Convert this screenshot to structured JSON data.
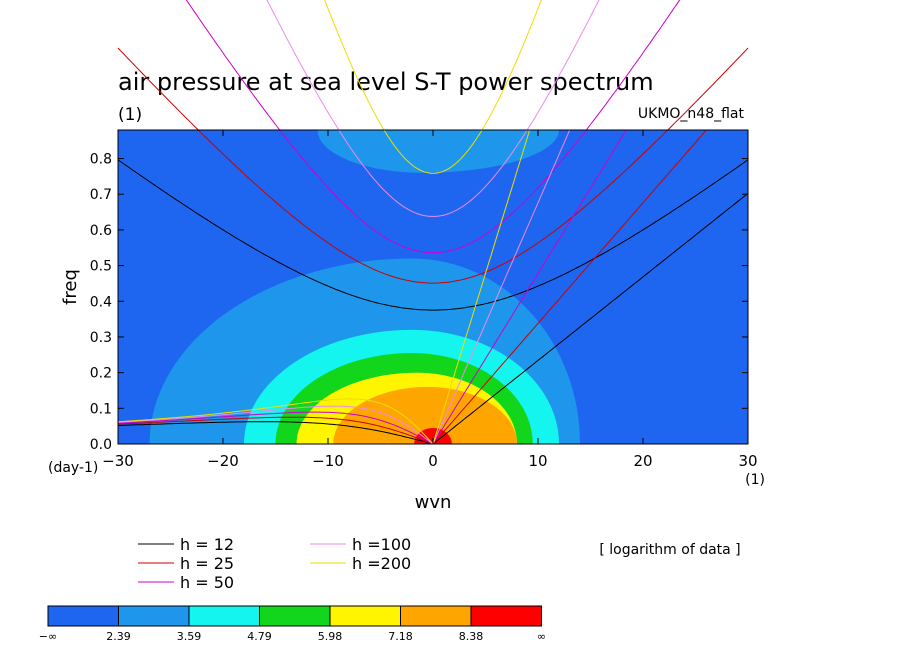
{
  "chart_data": {
    "type": "heatmap",
    "title": "air pressure at sea level S-T power spectrum",
    "subtitle_left": "(1)",
    "subtitle_right": "UKMO_n48_flat",
    "xlabel": "wvn",
    "ylabel": "freq",
    "x_unit_label": "(1)",
    "y_unit_label": "(day-1)",
    "xlim": [
      -30,
      30
    ],
    "ylim": [
      0,
      0.88
    ],
    "xticks": [
      "−30",
      "−20",
      "−10",
      "0",
      "10",
      "20",
      "30"
    ],
    "xtick_values": [
      -30,
      -20,
      -10,
      0,
      10,
      20,
      30
    ],
    "yticks": [
      "0.0",
      "0.1",
      "0.2",
      "0.3",
      "0.4",
      "0.5",
      "0.6",
      "0.7",
      "0.8"
    ],
    "ytick_values": [
      0,
      0.1,
      0.2,
      0.3,
      0.4,
      0.5,
      0.6,
      0.7,
      0.8
    ],
    "note": "[ logarithm of data ]",
    "colorbar": {
      "labels": [
        "−∞",
        "2.39",
        "3.59",
        "4.79",
        "5.98",
        "7.18",
        "8.38",
        "∞"
      ],
      "colors": [
        "#1e66f0",
        "#1e96ec",
        "#15f5f0",
        "#12d61c",
        "#fff500",
        "#ffa500",
        "#ff0000"
      ]
    },
    "contour_levels": [
      {
        "bounds": [
          2.39,
          3.59
        ],
        "color": "#1e96ec",
        "shapes": [
          {
            "center_x": -2,
            "center_y": 0.0,
            "wx_left": 25,
            "wx_right": 16,
            "h": 0.52
          },
          {
            "center_x": -1,
            "center_y": 0.88,
            "wx_left": 10,
            "wx_right": 13,
            "h": 0.12
          }
        ]
      },
      {
        "bounds": [
          3.59,
          4.79
        ],
        "color": "#15f5f0",
        "shapes": [
          {
            "center_x": -2,
            "center_y": 0.0,
            "wx_left": 16,
            "wx_right": 14,
            "h": 0.32
          }
        ]
      },
      {
        "bounds": [
          4.79,
          5.98
        ],
        "color": "#12d61c",
        "shapes": [
          {
            "center_x": -2,
            "center_y": 0.0,
            "wx_left": 13,
            "wx_right": 11.5,
            "h": 0.255
          }
        ]
      },
      {
        "bounds": [
          5.98,
          7.18
        ],
        "color": "#fff500",
        "shapes": [
          {
            "center_x": -1.5,
            "center_y": 0.0,
            "wx_left": 11.5,
            "wx_right": 9.5,
            "h": 0.2
          }
        ]
      },
      {
        "bounds": [
          7.18,
          8.38
        ],
        "color": "#ffa500",
        "shapes": [
          {
            "center_x": -0.5,
            "center_y": 0.0,
            "wx_left": 9,
            "wx_right": 8.5,
            "h": 0.16
          }
        ]
      },
      {
        "bounds": [
          8.38,
          "∞"
        ],
        "color": "#ff0000",
        "shapes": [
          {
            "center_x": 0,
            "center_y": 0.0,
            "wx_left": 1.8,
            "wx_right": 1.8,
            "h": 0.045
          }
        ]
      }
    ],
    "dispersion_curves": [
      {
        "label": "h = 12",
        "color": "#000000",
        "h": 12
      },
      {
        "label": "h = 25",
        "color": "#cc0000",
        "h": 25
      },
      {
        "label": "h = 50",
        "color": "#cc00cc",
        "h": 50
      },
      {
        "label": "h =100",
        "color": "#ee88ee",
        "h": 100
      },
      {
        "label": "h =200",
        "color": "#eedd00",
        "h": 200
      }
    ]
  }
}
